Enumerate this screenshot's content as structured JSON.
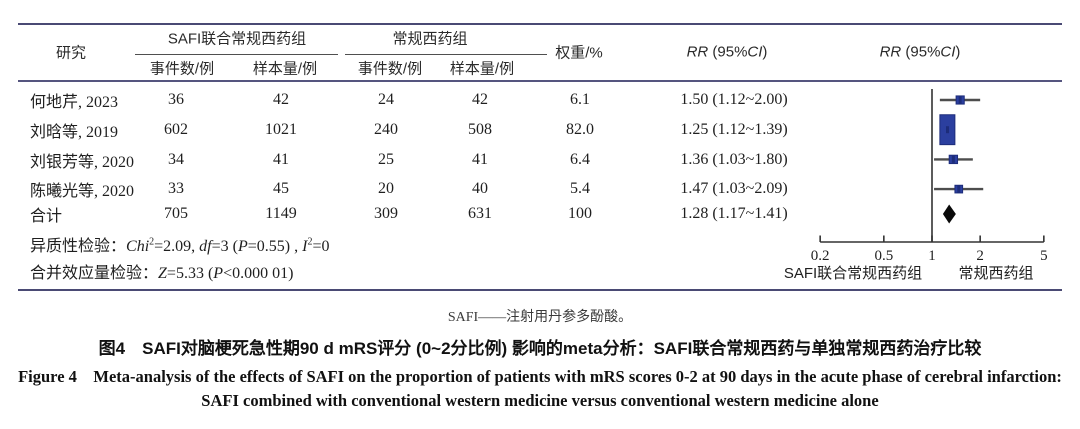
{
  "table": {
    "header": {
      "study": "研究",
      "group1": "SAFI联合常规西药组",
      "group2": "常规西药组",
      "events": "事件数/例",
      "sample": "样本量/例",
      "weight": "权重/%",
      "rr_segments": [
        [
          "RR",
          "i"
        ],
        [
          " (95%",
          "n"
        ],
        [
          "CI",
          "i"
        ],
        [
          ")",
          "n"
        ]
      ]
    },
    "rows": [
      {
        "study": "何地芹, 2023",
        "e1": "36",
        "n1": "42",
        "e2": "24",
        "n2": "42",
        "weight": "6.1",
        "rr": "1.50 (1.12~2.00)"
      },
      {
        "study": "刘晗等, 2019",
        "e1": "602",
        "n1": "1021",
        "e2": "240",
        "n2": "508",
        "weight": "82.0",
        "rr": "1.25 (1.12~1.39)"
      },
      {
        "study": "刘银芳等, 2020",
        "e1": "34",
        "n1": "41",
        "e2": "25",
        "n2": "41",
        "weight": "6.4",
        "rr": "1.36 (1.03~1.80)"
      },
      {
        "study": "陈曦光等, 2020",
        "e1": "33",
        "n1": "45",
        "e2": "20",
        "n2": "40",
        "weight": "5.4",
        "rr": "1.47 (1.03~2.09)"
      },
      {
        "study": "合计",
        "e1": "705",
        "n1": "1149",
        "e2": "309",
        "n2": "631",
        "weight": "100",
        "rr": "1.28 (1.17~1.41)"
      }
    ],
    "stats": {
      "heterogeneity": [
        [
          "异质性检验：",
          "n"
        ],
        [
          "Chi",
          "i"
        ],
        [
          "2",
          "sup"
        ],
        [
          "=2.09, ",
          "n"
        ],
        [
          "df",
          "i"
        ],
        [
          "=3 (",
          "n"
        ],
        [
          "P",
          "i"
        ],
        [
          "=0.55) , ",
          "n"
        ],
        [
          "I",
          "i"
        ],
        [
          "2",
          "sup"
        ],
        [
          "=0",
          "n"
        ]
      ],
      "effect": [
        [
          "合并效应量检验：",
          "n"
        ],
        [
          "Z",
          "i"
        ],
        [
          "=5.33 (",
          "n"
        ],
        [
          "P",
          "i"
        ],
        [
          "<0.000 01)",
          "n"
        ]
      ]
    }
  },
  "chart_data": {
    "type": "forest",
    "effect_measure": "RR",
    "x_scale": "log",
    "x_ticks": [
      0.2,
      0.5,
      1,
      2,
      5
    ],
    "null_value": 1,
    "items": [
      {
        "label": "何地芹, 2023",
        "rr": 1.5,
        "ci_low": 1.12,
        "ci_high": 2.0,
        "weight_pct": 6.1
      },
      {
        "label": "刘晗等, 2019",
        "rr": 1.25,
        "ci_low": 1.12,
        "ci_high": 1.39,
        "weight_pct": 82.0
      },
      {
        "label": "刘银芳等, 2020",
        "rr": 1.36,
        "ci_low": 1.03,
        "ci_high": 1.8,
        "weight_pct": 6.4
      },
      {
        "label": "陈曦光等, 2020",
        "rr": 1.47,
        "ci_low": 1.03,
        "ci_high": 2.09,
        "weight_pct": 5.4
      }
    ],
    "pooled": {
      "label": "合计",
      "rr": 1.28,
      "ci_low": 1.17,
      "ci_high": 1.41,
      "weight_pct": 100
    },
    "favors_labels": {
      "left": "SAFI联合常规西药组",
      "right": "常规西药组"
    },
    "colors": {
      "marker": "#2b3f9f",
      "marker_border": "#1d2c7a",
      "ci_line": "#4d4d4d",
      "diamond": "#0a0a0a",
      "axis": "#333333"
    }
  },
  "captions": {
    "note": "SAFI——注射用丹参多酚酸。",
    "title_zh": "图4　SAFI对脑梗死急性期90 d mRS评分 (0~2分比例) 影响的meta分析：SAFI联合常规西药与单独常规西药治疗比较",
    "title_en_line1": "Figure 4　Meta-analysis of the effects of SAFI on the proportion of patients with mRS scores 0-2 at 90 days in the acute phase of cerebral infarction:",
    "title_en_line2": "SAFI combined with conventional western medicine versus conventional western medicine alone"
  }
}
